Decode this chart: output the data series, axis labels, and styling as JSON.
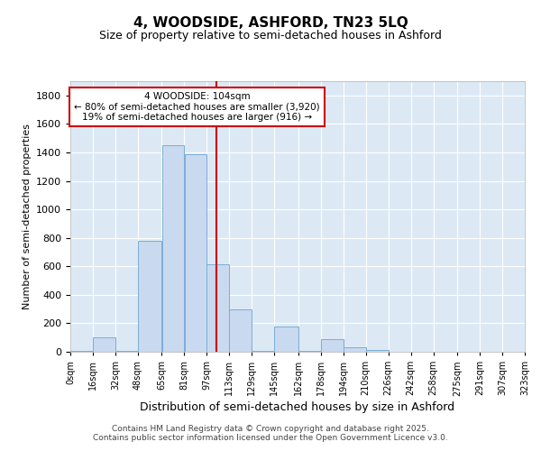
{
  "title1": "4, WOODSIDE, ASHFORD, TN23 5LQ",
  "title2": "Size of property relative to semi-detached houses in Ashford",
  "xlabel": "Distribution of semi-detached houses by size in Ashford",
  "ylabel": "Number of semi-detached properties",
  "annotation_line1": "4 WOODSIDE: 104sqm",
  "annotation_line2": "← 80% of semi-detached houses are smaller (3,920)",
  "annotation_line3": "19% of semi-detached houses are larger (916) →",
  "bin_edges": [
    0,
    16,
    32,
    48,
    65,
    81,
    97,
    113,
    129,
    145,
    162,
    178,
    194,
    210,
    226,
    242,
    258,
    275,
    291,
    307,
    323
  ],
  "bar_heights": [
    5,
    100,
    5,
    780,
    1450,
    1385,
    615,
    300,
    5,
    175,
    5,
    90,
    30,
    10,
    0,
    0,
    0,
    0,
    0,
    0
  ],
  "bar_color": "#c9d9ef",
  "bar_edge_color": "#7aaed6",
  "vline_color": "#cc0000",
  "vline_x": 104,
  "annotation_box_edgecolor": "#cc0000",
  "annotation_bg": "#ffffff",
  "ylim": [
    0,
    1900
  ],
  "ytick_interval": 200,
  "background_color": "#dce9f5",
  "grid_color": "#ffffff",
  "footer_line1": "Contains HM Land Registry data © Crown copyright and database right 2025.",
  "footer_line2": "Contains public sector information licensed under the Open Government Licence v3.0."
}
